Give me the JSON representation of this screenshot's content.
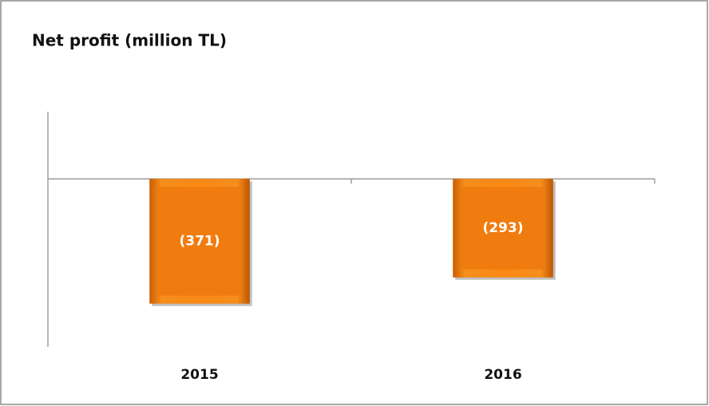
{
  "chart_data": {
    "type": "bar",
    "title": "Net profit (million TL)",
    "categories": [
      "2015",
      "2016"
    ],
    "values": [
      -371,
      -293
    ],
    "value_labels": [
      "(371)",
      "(293)"
    ],
    "color": "#f07c10",
    "ylim": [
      -500,
      200
    ]
  }
}
